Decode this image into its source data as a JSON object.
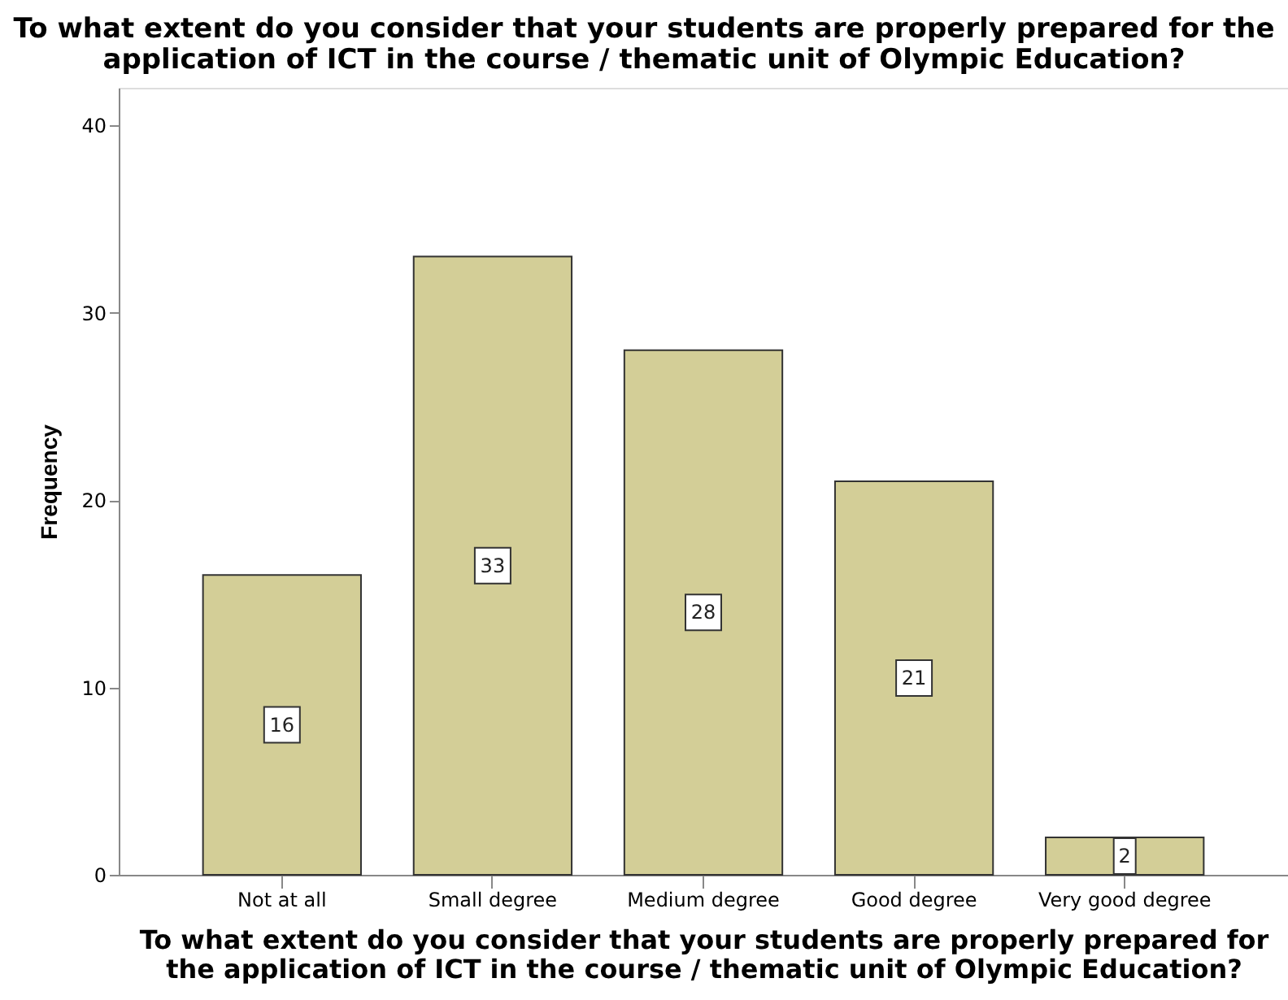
{
  "chart_data": {
    "type": "bar",
    "title": "To what extent do you consider that your students are properly prepared for the\napplication of ICT in the course / thematic unit of Olympic Education?",
    "xlabel": "To what extent do you consider that your students are properly prepared for\nthe application of ICT in the course / thematic unit of Olympic Education?",
    "ylabel": "Frequency",
    "categories": [
      "Not at all",
      "Small degree",
      "Medium degree",
      "Good degree",
      "Very good degree"
    ],
    "values": [
      16,
      33,
      28,
      21,
      2
    ],
    "color": "#d3ce97",
    "ylim": [
      0,
      42
    ],
    "yticks": [
      0,
      10,
      20,
      30,
      40
    ],
    "grid": false,
    "data_labels": true
  }
}
